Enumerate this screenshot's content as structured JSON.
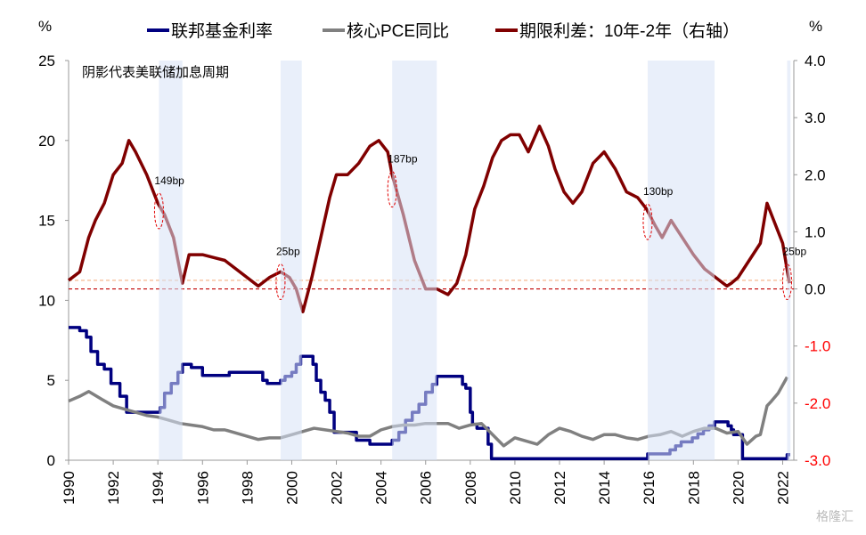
{
  "chart_data": {
    "type": "line",
    "left_unit": "%",
    "right_unit": "%",
    "left_ylim": [
      0,
      25
    ],
    "left_ticks": [
      "0",
      "5",
      "10",
      "15",
      "20",
      "25"
    ],
    "right_ylim": [
      -3,
      4
    ],
    "right_ticks": [
      "-3.0",
      "-2.0",
      "-1.0",
      "0.0",
      "1.0",
      "2.0",
      "3.0",
      "4.0"
    ],
    "xlim": [
      1990,
      2022.5
    ],
    "x_ticks": [
      "1990",
      "1992",
      "1994",
      "1996",
      "1998",
      "2000",
      "2002",
      "2004",
      "2006",
      "2008",
      "2010",
      "2012",
      "2014",
      "2016",
      "2018",
      "2020",
      "2022"
    ],
    "negative_tick_color": "#ff0000",
    "shade_note": "阴影代表美联储加息周期",
    "shade_color": "#e9eef8",
    "hike_cycles": [
      [
        1994.05,
        1995.1
      ],
      [
        1999.5,
        2000.45
      ],
      [
        2004.5,
        2006.5
      ],
      [
        2015.95,
        2018.95
      ],
      [
        2022.2,
        2022.35
      ]
    ],
    "series": [
      {
        "name": "联邦基金利率",
        "axis": "left",
        "color": "#000080",
        "step": true,
        "x": [
          1990,
          1990.5,
          1990.8,
          1991,
          1991.3,
          1991.6,
          1991.9,
          1992.3,
          1992.6,
          1994.1,
          1994.3,
          1994.6,
          1994.9,
          1995.1,
          1995.5,
          1996,
          1997.2,
          1998.7,
          1998.9,
          1999.5,
          1999.7,
          2000,
          2000.2,
          2000.4,
          2000.95,
          2001.1,
          2001.3,
          2001.5,
          2001.7,
          2001.9,
          2002.9,
          2003.5,
          2004.5,
          2004.8,
          2005.1,
          2005.4,
          2005.7,
          2006,
          2006.3,
          2006.5,
          2007.65,
          2007.8,
          2008,
          2008.1,
          2008.3,
          2008.8,
          2008.95,
          2015.95,
          2016.95,
          2017.2,
          2017.45,
          2017.95,
          2018.2,
          2018.45,
          2018.7,
          2018.95,
          2019.55,
          2019.7,
          2019.8,
          2020.2,
          2022.2
        ],
        "y": [
          8.3,
          8.1,
          7.7,
          6.8,
          6.0,
          5.7,
          4.8,
          4.0,
          3.0,
          3.3,
          4.2,
          4.8,
          5.5,
          6.0,
          5.8,
          5.3,
          5.5,
          5.0,
          4.8,
          5.0,
          5.25,
          5.5,
          6.0,
          6.5,
          6.0,
          5.0,
          4.25,
          3.75,
          3.0,
          1.75,
          1.25,
          1.0,
          1.25,
          1.75,
          2.5,
          3.0,
          3.5,
          4.25,
          4.75,
          5.25,
          4.75,
          4.5,
          3.0,
          2.25,
          2.0,
          1.0,
          0.1,
          0.4,
          0.65,
          0.9,
          1.15,
          1.4,
          1.65,
          1.9,
          2.15,
          2.4,
          2.15,
          1.9,
          1.6,
          0.1,
          0.35
        ]
      },
      {
        "name": "核心PCE同比",
        "axis": "left",
        "color": "#808080",
        "step": false,
        "x": [
          1990,
          1990.5,
          1990.9,
          1991.5,
          1992,
          1992.5,
          1993,
          1993.5,
          1994,
          1994.5,
          1995,
          1995.5,
          1996,
          1996.5,
          1997,
          1997.5,
          1998,
          1998.5,
          1999,
          1999.5,
          2000,
          2000.5,
          2001,
          2001.5,
          2002,
          2002.5,
          2003,
          2003.5,
          2004,
          2004.5,
          2005,
          2005.5,
          2006,
          2006.5,
          2007,
          2007.5,
          2008,
          2008.5,
          2009,
          2009.5,
          2010,
          2010.5,
          2011,
          2011.5,
          2012,
          2012.5,
          2013,
          2013.5,
          2014,
          2014.5,
          2015,
          2015.5,
          2016,
          2016.5,
          2017,
          2017.5,
          2018,
          2018.5,
          2019,
          2019.5,
          2020,
          2020.4,
          2020.8,
          2021,
          2021.3,
          2021.5,
          2021.8,
          2022.2
        ],
        "y": [
          3.7,
          4.0,
          4.3,
          3.8,
          3.4,
          3.2,
          3.0,
          2.8,
          2.7,
          2.5,
          2.3,
          2.2,
          2.1,
          1.9,
          1.9,
          1.7,
          1.5,
          1.3,
          1.4,
          1.4,
          1.6,
          1.8,
          2.0,
          1.9,
          1.8,
          1.7,
          1.5,
          1.5,
          1.9,
          2.1,
          2.2,
          2.2,
          2.3,
          2.3,
          2.3,
          2.0,
          2.2,
          2.3,
          1.6,
          0.9,
          1.4,
          1.2,
          1.0,
          1.6,
          2.0,
          1.8,
          1.5,
          1.3,
          1.6,
          1.6,
          1.4,
          1.3,
          1.5,
          1.6,
          1.8,
          1.5,
          1.8,
          2.0,
          2.0,
          1.7,
          1.8,
          1.0,
          1.5,
          1.6,
          3.4,
          3.7,
          4.2,
          5.2
        ]
      },
      {
        "name": "期限利差：10年-2年（右轴）",
        "axis": "right",
        "color": "#800000",
        "step": false,
        "x": [
          1990,
          1990.5,
          1990.9,
          1991.2,
          1991.6,
          1992,
          1992.4,
          1992.7,
          1993,
          1993.5,
          1994,
          1994.3,
          1994.7,
          1995.1,
          1995.4,
          1996,
          1996.5,
          1997,
          1997.5,
          1998,
          1998.5,
          1999,
          1999.5,
          1999.9,
          2000.2,
          2000.5,
          2000.9,
          2001.3,
          2001.7,
          2002,
          2002.5,
          2003,
          2003.5,
          2003.9,
          2004.3,
          2004.5,
          2005,
          2005.5,
          2006,
          2006.5,
          2007,
          2007.4,
          2007.8,
          2008.2,
          2008.6,
          2009,
          2009.4,
          2009.8,
          2010.2,
          2010.6,
          2011.1,
          2011.5,
          2011.8,
          2012.2,
          2012.6,
          2013,
          2013.5,
          2014,
          2014.5,
          2015,
          2015.5,
          2015.9,
          2016.3,
          2016.6,
          2017,
          2017.5,
          2018,
          2018.5,
          2019,
          2019.5,
          2019.7,
          2020,
          2020.5,
          2021,
          2021.3,
          2021.6,
          2022,
          2022.3
        ],
        "y": [
          0.15,
          0.3,
          0.9,
          1.2,
          1.5,
          2.0,
          2.2,
          2.6,
          2.4,
          2.0,
          1.5,
          1.3,
          0.9,
          0.1,
          0.6,
          0.6,
          0.55,
          0.5,
          0.35,
          0.2,
          0.05,
          0.2,
          0.3,
          0.2,
          0.0,
          -0.4,
          0.2,
          0.9,
          1.6,
          2.0,
          2.0,
          2.2,
          2.5,
          2.6,
          2.4,
          2.0,
          1.3,
          0.5,
          0.0,
          0.0,
          -0.1,
          0.1,
          0.6,
          1.4,
          1.8,
          2.3,
          2.6,
          2.7,
          2.7,
          2.4,
          2.85,
          2.5,
          2.1,
          1.7,
          1.5,
          1.7,
          2.2,
          2.4,
          2.1,
          1.7,
          1.6,
          1.4,
          1.1,
          0.9,
          1.2,
          0.9,
          0.6,
          0.35,
          0.2,
          0.05,
          0.1,
          0.2,
          0.5,
          0.8,
          1.5,
          1.2,
          0.8,
          0.1
        ]
      }
    ],
    "reference_lines": [
      {
        "axis": "right",
        "y": 0.15,
        "color": "#f4b183"
      },
      {
        "axis": "right",
        "y": 0.0,
        "color": "#c00000"
      }
    ],
    "annotations": [
      {
        "text": "149bp",
        "x": 1994.05,
        "y": 1.49
      },
      {
        "text": "25bp",
        "x": 1999.5,
        "y": 0.25
      },
      {
        "text": "187bp",
        "x": 2004.5,
        "y": 1.87
      },
      {
        "text": "130bp",
        "x": 2015.95,
        "y": 1.3
      },
      {
        "text": "25bp",
        "x": 2022.2,
        "y": 0.25
      }
    ]
  },
  "watermark": "格隆汇"
}
